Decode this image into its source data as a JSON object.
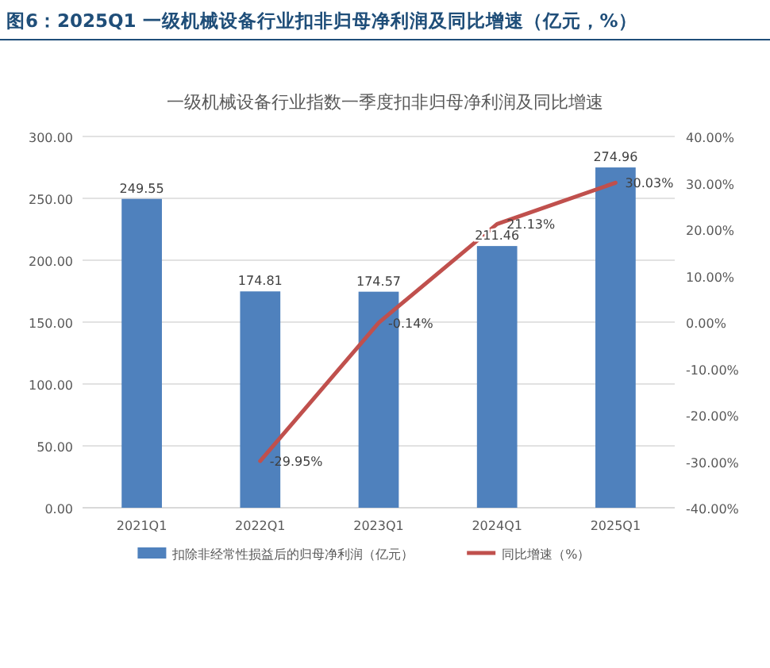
{
  "chart_data": {
    "type": "bar",
    "title": "图6：2025Q1 一级机械设备行业扣非归母净利润及同比增速（亿元，%）",
    "subtitle": "一级机械设备行业指数一季度扣非归母净利润及同比增速",
    "categories": [
      "2021Q1",
      "2022Q1",
      "2023Q1",
      "2024Q1",
      "2025Q1"
    ],
    "series": [
      {
        "name": "扣除非经常性损益后的归母净利润（亿元）",
        "color": "#4f81bd",
        "values": [
          249.55,
          174.81,
          174.57,
          211.46,
          274.96
        ],
        "value_labels": [
          "249.55",
          "174.81",
          "174.57",
          "211.46",
          "274.96"
        ]
      },
      {
        "name": "同比增速（%）",
        "type": "line",
        "axis": "y2",
        "color": "#c0504d",
        "values": [
          null,
          -29.95,
          -0.14,
          21.13,
          30.03
        ],
        "value_labels": [
          null,
          "-29.95%",
          "-0.14%",
          "21.13%",
          "30.03%"
        ]
      }
    ],
    "ylim": [
      0,
      300
    ],
    "yticks": [
      {
        "value": 0,
        "label": "0.00"
      },
      {
        "value": 50,
        "label": "50.00"
      },
      {
        "value": 100,
        "label": "100.00"
      },
      {
        "value": 150,
        "label": "150.00"
      },
      {
        "value": 200,
        "label": "200.00"
      },
      {
        "value": 250,
        "label": "250.00"
      },
      {
        "value": 300,
        "label": "300.00"
      }
    ],
    "y2lim": [
      -40,
      40
    ],
    "y2ticks": [
      {
        "value": -40,
        "label": "-40.00%"
      },
      {
        "value": -30,
        "label": "-30.00%"
      },
      {
        "value": -20,
        "label": "-20.00%"
      },
      {
        "value": -10,
        "label": "-10.00%"
      },
      {
        "value": 0,
        "label": "0.00%"
      },
      {
        "value": 10,
        "label": "10.00%"
      },
      {
        "value": 20,
        "label": "20.00%"
      },
      {
        "value": 30,
        "label": "30.00%"
      },
      {
        "value": 40,
        "label": "40.00%"
      }
    ],
    "grid": "y",
    "legend": "bottom",
    "marker": "none",
    "line_style": "solid"
  }
}
